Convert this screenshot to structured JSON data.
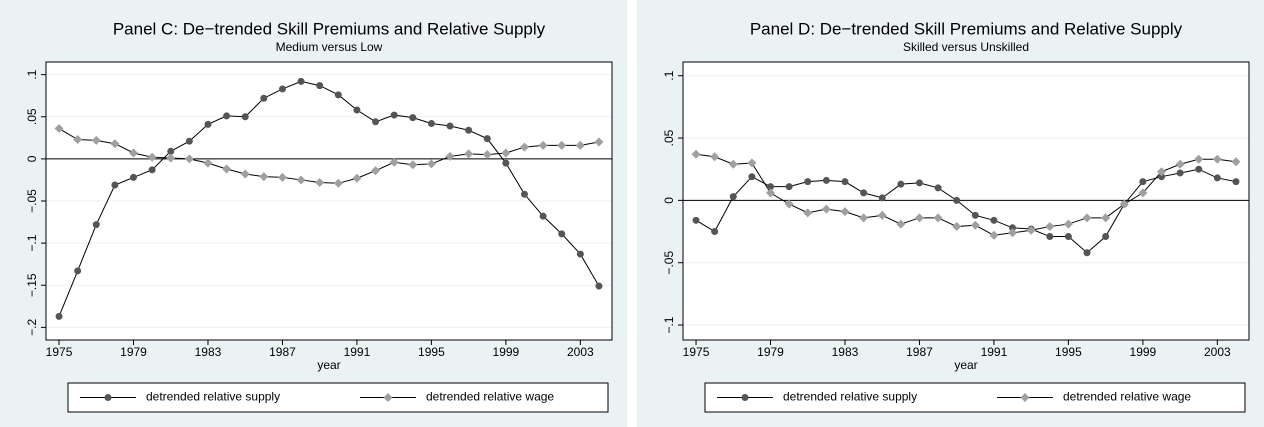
{
  "chart_data": [
    {
      "type": "line",
      "title": "Panel C: De−trended Skill Premiums and Relative Supply",
      "subtitle": "Medium versus Low",
      "x_label": "year",
      "x": [
        1975,
        1976,
        1977,
        1978,
        1979,
        1980,
        1981,
        1982,
        1983,
        1984,
        1985,
        1986,
        1987,
        1988,
        1989,
        1990,
        1991,
        1992,
        1993,
        1994,
        1995,
        1996,
        1997,
        1998,
        1999,
        2000,
        2001,
        2002,
        2003,
        2004
      ],
      "xlim": [
        1974.3,
        2004.7
      ],
      "xticks": [
        1975,
        1979,
        1983,
        1987,
        1991,
        1995,
        1999,
        2003
      ],
      "ylim": [
        -0.215,
        0.115
      ],
      "yticks": [
        {
          "value": -0.2,
          "label": "−.2"
        },
        {
          "value": -0.15,
          "label": "−.15"
        },
        {
          "value": -0.1,
          "label": "−.1"
        },
        {
          "value": -0.05,
          "label": "−.05"
        },
        0,
        {
          "value": 0.05,
          "label": ".05"
        },
        {
          "value": 0.1,
          "label": ".1"
        }
      ],
      "grid": true,
      "reference_line": 0,
      "line_color": "#000000",
      "series": [
        {
          "name": "detrended relative supply",
          "color": "#555555",
          "marker": "circle",
          "values": [
            -0.187,
            -0.133,
            -0.078,
            -0.031,
            -0.022,
            -0.013,
            0.009,
            0.021,
            0.041,
            0.051,
            0.05,
            0.072,
            0.083,
            0.092,
            0.087,
            0.076,
            0.058,
            0.044,
            0.052,
            0.049,
            0.042,
            0.039,
            0.034,
            0.024,
            -0.005,
            -0.042,
            -0.068,
            -0.089,
            -0.113,
            -0.151
          ]
        },
        {
          "name": "detrended relative wage",
          "color": "#a0a0a0",
          "marker": "diamond",
          "values": [
            0.036,
            0.023,
            0.022,
            0.018,
            0.007,
            0.002,
            0.001,
            0.0,
            -0.005,
            -0.012,
            -0.018,
            -0.021,
            -0.022,
            -0.025,
            -0.028,
            -0.029,
            -0.023,
            -0.014,
            -0.004,
            -0.007,
            -0.006,
            0.003,
            0.006,
            0.005,
            0.007,
            0.014,
            0.016,
            0.016,
            0.016,
            0.02
          ]
        }
      ]
    },
    {
      "type": "line",
      "title": "Panel D: De−trended Skill Premiums and Relative Supply",
      "subtitle": "Skilled versus Unskilled",
      "x_label": "year",
      "x": [
        1975,
        1976,
        1977,
        1978,
        1979,
        1980,
        1981,
        1982,
        1983,
        1984,
        1985,
        1986,
        1987,
        1988,
        1989,
        1990,
        1991,
        1992,
        1993,
        1994,
        1995,
        1996,
        1997,
        1998,
        1999,
        2000,
        2001,
        2002,
        2003,
        2004
      ],
      "xlim": [
        1974.3,
        2004.7
      ],
      "xticks": [
        1975,
        1979,
        1983,
        1987,
        1991,
        1995,
        1999,
        2003
      ],
      "ylim": [
        -0.112,
        0.111
      ],
      "yticks": [
        {
          "value": -0.1,
          "label": "−.1"
        },
        {
          "value": -0.05,
          "label": "−.05"
        },
        0,
        {
          "value": 0.05,
          "label": ".05"
        },
        {
          "value": 0.1,
          "label": ".1"
        }
      ],
      "grid": true,
      "reference_line": 0,
      "line_color": "#000000",
      "series": [
        {
          "name": "detrended relative supply",
          "color": "#555555",
          "marker": "circle",
          "values": [
            -0.016,
            -0.025,
            0.003,
            0.019,
            0.011,
            0.011,
            0.015,
            0.016,
            0.015,
            0.006,
            0.002,
            0.013,
            0.014,
            0.01,
            0.0,
            -0.012,
            -0.016,
            -0.022,
            -0.023,
            -0.029,
            -0.029,
            -0.042,
            -0.029,
            -0.003,
            0.015,
            0.019,
            0.022,
            0.025,
            0.018,
            0.015
          ]
        },
        {
          "name": "detrended relative wage",
          "color": "#a0a0a0",
          "marker": "diamond",
          "values": [
            0.037,
            0.035,
            0.029,
            0.03,
            0.006,
            -0.003,
            -0.01,
            -0.007,
            -0.009,
            -0.014,
            -0.012,
            -0.019,
            -0.014,
            -0.014,
            -0.021,
            -0.02,
            -0.028,
            -0.026,
            -0.024,
            -0.021,
            -0.019,
            -0.014,
            -0.014,
            -0.003,
            0.006,
            0.023,
            0.029,
            0.033,
            0.033,
            0.031
          ]
        }
      ]
    }
  ]
}
